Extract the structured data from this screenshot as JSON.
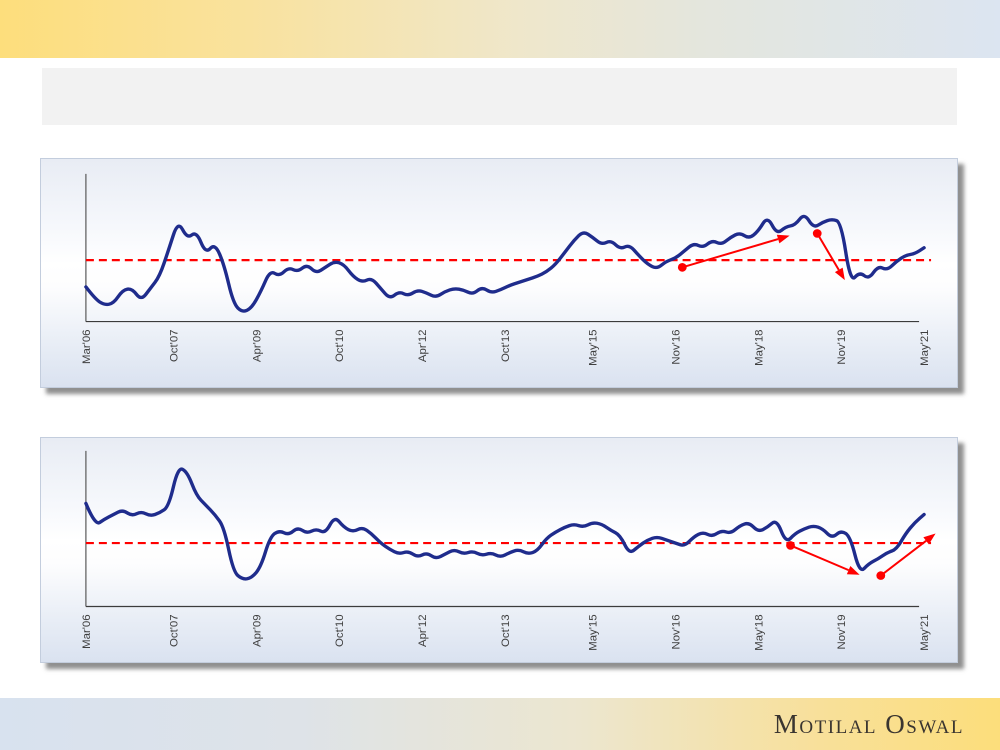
{
  "slide": {
    "title_placeholder": ""
  },
  "footer": {
    "logo": "Motilal Oswal"
  },
  "theme": {
    "header_gradient_left": "#fdde7c",
    "header_gradient_right": "#dce5f1",
    "series_blue": "#1f2c8c",
    "annotation_red": "#ff0000",
    "axis_color": "#4a4a4a",
    "tick_label_color": "#3f3f3f",
    "title_box_gray": "#f2f2f2"
  },
  "chart_data": [
    {
      "type": "line",
      "title": "",
      "xlabel": "",
      "ylabel": "",
      "x_unit": "months since Mar'06",
      "x_step": 2,
      "ylim": [
        0,
        100
      ],
      "grid": false,
      "legend": "none",
      "x_ticks": {
        "labels": [
          "Mar'06",
          "Oct'07",
          "Apr'09",
          "Oct'10",
          "Apr'12",
          "Oct'13",
          "May'15",
          "Nov'16",
          "May'18",
          "Nov'19",
          "May'21"
        ],
        "months": [
          0,
          19,
          37,
          55,
          73,
          91,
          110,
          128,
          146,
          164,
          182
        ]
      },
      "average_line": {
        "value": 40.8,
        "color": "#ff0000",
        "style": "dashed"
      },
      "series": [
        {
          "name": "indicator-top",
          "color": "#1f2c8c",
          "values": [
            23,
            15,
            11,
            12,
            21,
            22,
            14,
            22,
            30,
            48,
            67,
            55,
            60,
            45,
            52,
            38,
            12,
            6,
            9,
            20,
            34,
            30,
            36,
            33,
            38,
            32,
            36,
            40,
            38,
            30,
            26,
            29,
            22,
            15,
            20,
            17,
            21,
            19,
            16,
            20,
            22,
            21,
            18,
            23,
            19,
            21,
            24,
            26,
            28,
            30,
            33,
            38,
            46,
            54,
            60,
            56,
            51,
            54,
            48,
            51,
            44,
            38,
            35,
            40,
            42,
            47,
            52,
            49,
            54,
            51,
            56,
            59,
            55,
            60,
            70,
            58,
            63,
            64,
            72,
            62,
            66,
            68,
            66,
            26,
            33,
            28,
            37,
            34,
            40,
            44,
            45,
            49
          ]
        }
      ],
      "annotations": [
        {
          "type": "arrow",
          "color": "#ff0000",
          "from_month": 129.5,
          "from_value": 36,
          "to_month": 152.8,
          "to_value": 57
        },
        {
          "type": "arrow",
          "color": "#ff0000",
          "from_month": 158.8,
          "from_value": 58.5,
          "to_month": 164.8,
          "to_value": 27.5
        }
      ]
    },
    {
      "type": "line",
      "title": "",
      "xlabel": "",
      "ylabel": "",
      "x_unit": "months since Mar'06",
      "x_step": 2,
      "ylim": [
        0,
        100
      ],
      "grid": false,
      "legend": "none",
      "x_ticks": {
        "labels": [
          "Mar'06",
          "Oct'07",
          "Apr'09",
          "Oct'10",
          "Apr'12",
          "Oct'13",
          "May'15",
          "Nov'16",
          "May'18",
          "Nov'19",
          "May'21"
        ],
        "months": [
          0,
          19,
          37,
          55,
          73,
          91,
          110,
          128,
          146,
          164,
          182
        ]
      },
      "average_line": {
        "value": 40,
        "color": "#ff0000",
        "style": "dashed"
      },
      "series": [
        {
          "name": "indicator-bottom",
          "color": "#1f2c8c",
          "values": [
            65,
            51,
            55,
            58,
            61,
            57,
            60,
            57,
            59,
            63,
            88,
            85,
            70,
            64,
            58,
            50,
            22,
            17,
            18,
            25,
            44,
            48,
            45,
            50,
            46,
            49,
            46,
            57,
            50,
            47,
            50,
            46,
            40,
            36,
            33,
            35,
            31,
            34,
            30,
            33,
            36,
            33,
            35,
            32,
            34,
            31,
            34,
            36,
            33,
            35,
            43,
            47,
            50,
            52,
            50,
            53,
            52,
            48,
            45,
            33,
            38,
            42,
            44,
            42,
            40,
            38,
            44,
            47,
            44,
            48,
            46,
            51,
            53,
            47,
            50,
            55,
            40,
            46,
            49,
            51,
            49,
            43,
            48,
            44,
            21,
            27,
            30,
            34,
            36,
            46,
            53,
            58
          ]
        }
      ],
      "annotations": [
        {
          "type": "arrow",
          "color": "#ff0000",
          "from_month": 153,
          "from_value": 38.5,
          "to_month": 168,
          "to_value": 20
        },
        {
          "type": "arrow",
          "color": "#ff0000",
          "from_month": 172.6,
          "from_value": 19.5,
          "to_month": 184.5,
          "to_value": 46
        }
      ]
    }
  ]
}
